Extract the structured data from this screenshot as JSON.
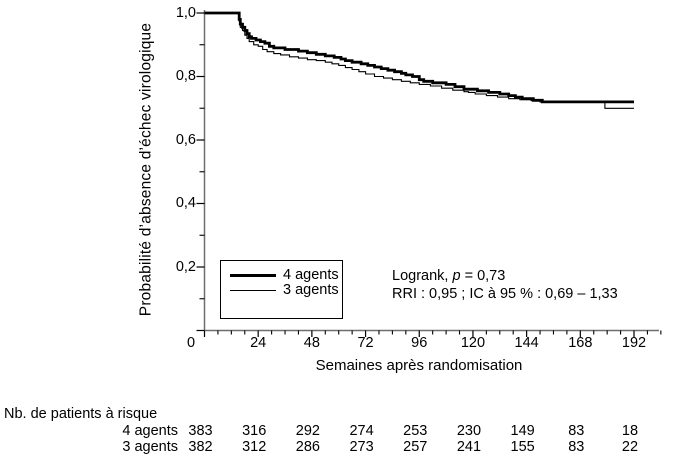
{
  "figure": {
    "background": "#ffffff",
    "line_color": "#000000",
    "axis_color": "#6e6e6e",
    "y_axis_title": "Probabilité d’absence d’échec virologique",
    "x_axis_title": "Semaines après randomisation"
  },
  "legend": {
    "items": [
      {
        "label": "4 agents",
        "style": "thick"
      },
      {
        "label": "3 agents",
        "style": "thin"
      }
    ]
  },
  "annotation": {
    "line1_prefix": "Logrank, ",
    "line1_p": "p",
    "line1_suffix": " = 0,73",
    "line2": "RRI : 0,95 ; IC à 95 % : 0,69 – 1,33"
  },
  "risk_table": {
    "title": "Nb. de patients à risque",
    "rows": [
      {
        "label": "4 agents",
        "counts": [
          "383",
          "316",
          "292",
          "274",
          "253",
          "230",
          "149",
          "83",
          "18"
        ]
      },
      {
        "label": "3 agents",
        "counts": [
          "382",
          "312",
          "286",
          "273",
          "257",
          "241",
          "155",
          "83",
          "22"
        ]
      }
    ]
  },
  "chart_data": {
    "type": "line",
    "subtype": "kaplan-meier-step",
    "title": "",
    "xlabel": "Semaines après randomisation",
    "ylabel": "Probabilité d’absence d’échec virologique",
    "xlim": [
      0,
      192
    ],
    "ylim": [
      0,
      1
    ],
    "x_ticks": [
      0,
      24,
      48,
      72,
      96,
      120,
      144,
      168,
      192
    ],
    "x_tick_labels": [
      "0",
      "24",
      "48",
      "72",
      "96",
      "120",
      "144",
      "168",
      "192"
    ],
    "x_minor_step": 6,
    "y_ticks": [
      1.0,
      0.8,
      0.6,
      0.4,
      0.2
    ],
    "y_tick_labels": [
      "1,0",
      "0,8",
      "0,6",
      "0,4",
      "0,2"
    ],
    "origin_label": "0",
    "y_minor_step": 0.1,
    "grid": false,
    "legend_position": "inside-lower-left",
    "annotations": [
      "Logrank, p = 0,73",
      "RRI : 0,95 ; IC à 95 % : 0,69 – 1,33"
    ],
    "series": [
      {
        "name": "4 agents",
        "stroke_width": 2.8,
        "points": [
          [
            0,
            1.0
          ],
          [
            15,
            1.0
          ],
          [
            15.5,
            0.98
          ],
          [
            16,
            0.965
          ],
          [
            17,
            0.955
          ],
          [
            18,
            0.945
          ],
          [
            19,
            0.935
          ],
          [
            20,
            0.925
          ],
          [
            21,
            0.92
          ],
          [
            23,
            0.915
          ],
          [
            25,
            0.91
          ],
          [
            27,
            0.905
          ],
          [
            29,
            0.895
          ],
          [
            31,
            0.89
          ],
          [
            36,
            0.885
          ],
          [
            42,
            0.88
          ],
          [
            46,
            0.875
          ],
          [
            50,
            0.87
          ],
          [
            54,
            0.865
          ],
          [
            58,
            0.86
          ],
          [
            61,
            0.855
          ],
          [
            63,
            0.85
          ],
          [
            66,
            0.845
          ],
          [
            70,
            0.84
          ],
          [
            73,
            0.835
          ],
          [
            76,
            0.83
          ],
          [
            79,
            0.825
          ],
          [
            82,
            0.82
          ],
          [
            85,
            0.815
          ],
          [
            88,
            0.81
          ],
          [
            90,
            0.805
          ],
          [
            93,
            0.8
          ],
          [
            96,
            0.79
          ],
          [
            98,
            0.785
          ],
          [
            102,
            0.78
          ],
          [
            108,
            0.775
          ],
          [
            112,
            0.768
          ],
          [
            116,
            0.76
          ],
          [
            122,
            0.755
          ],
          [
            127,
            0.75
          ],
          [
            132,
            0.745
          ],
          [
            136,
            0.74
          ],
          [
            139,
            0.735
          ],
          [
            142,
            0.73
          ],
          [
            147,
            0.725
          ],
          [
            151,
            0.72
          ],
          [
            192,
            0.72
          ]
        ]
      },
      {
        "name": "3 agents",
        "stroke_width": 1.1,
        "points": [
          [
            0,
            1.0
          ],
          [
            15,
            1.0
          ],
          [
            15.5,
            0.975
          ],
          [
            16,
            0.955
          ],
          [
            17,
            0.945
          ],
          [
            18,
            0.93
          ],
          [
            19,
            0.92
          ],
          [
            20,
            0.91
          ],
          [
            22,
            0.9
          ],
          [
            24,
            0.895
          ],
          [
            26,
            0.885
          ],
          [
            28,
            0.878
          ],
          [
            31,
            0.872
          ],
          [
            34,
            0.868
          ],
          [
            38,
            0.862
          ],
          [
            42,
            0.858
          ],
          [
            46,
            0.853
          ],
          [
            50,
            0.85
          ],
          [
            54,
            0.845
          ],
          [
            57,
            0.84
          ],
          [
            60,
            0.835
          ],
          [
            63,
            0.828
          ],
          [
            66,
            0.822
          ],
          [
            69,
            0.815
          ],
          [
            72,
            0.808
          ],
          [
            76,
            0.8
          ],
          [
            80,
            0.795
          ],
          [
            84,
            0.79
          ],
          [
            88,
            0.785
          ],
          [
            92,
            0.78
          ],
          [
            96,
            0.775
          ],
          [
            101,
            0.77
          ],
          [
            106,
            0.763
          ],
          [
            111,
            0.757
          ],
          [
            116,
            0.752
          ],
          [
            118,
            0.75
          ],
          [
            121,
            0.745
          ],
          [
            126,
            0.74
          ],
          [
            131,
            0.735
          ],
          [
            136,
            0.73
          ],
          [
            141,
            0.727
          ],
          [
            146,
            0.724
          ],
          [
            150,
            0.72
          ],
          [
            178,
            0.72
          ],
          [
            179,
            0.7
          ],
          [
            192,
            0.7
          ]
        ]
      }
    ],
    "risk_table": {
      "title": "Nb. de patients à risque",
      "weeks": [
        0,
        24,
        48,
        72,
        96,
        120,
        144,
        168,
        192
      ],
      "rows": [
        {
          "name": "4 agents",
          "counts": [
            383,
            316,
            292,
            274,
            253,
            230,
            149,
            83,
            18
          ]
        },
        {
          "name": "3 agents",
          "counts": [
            382,
            312,
            286,
            273,
            257,
            241,
            155,
            83,
            22
          ]
        }
      ]
    }
  }
}
